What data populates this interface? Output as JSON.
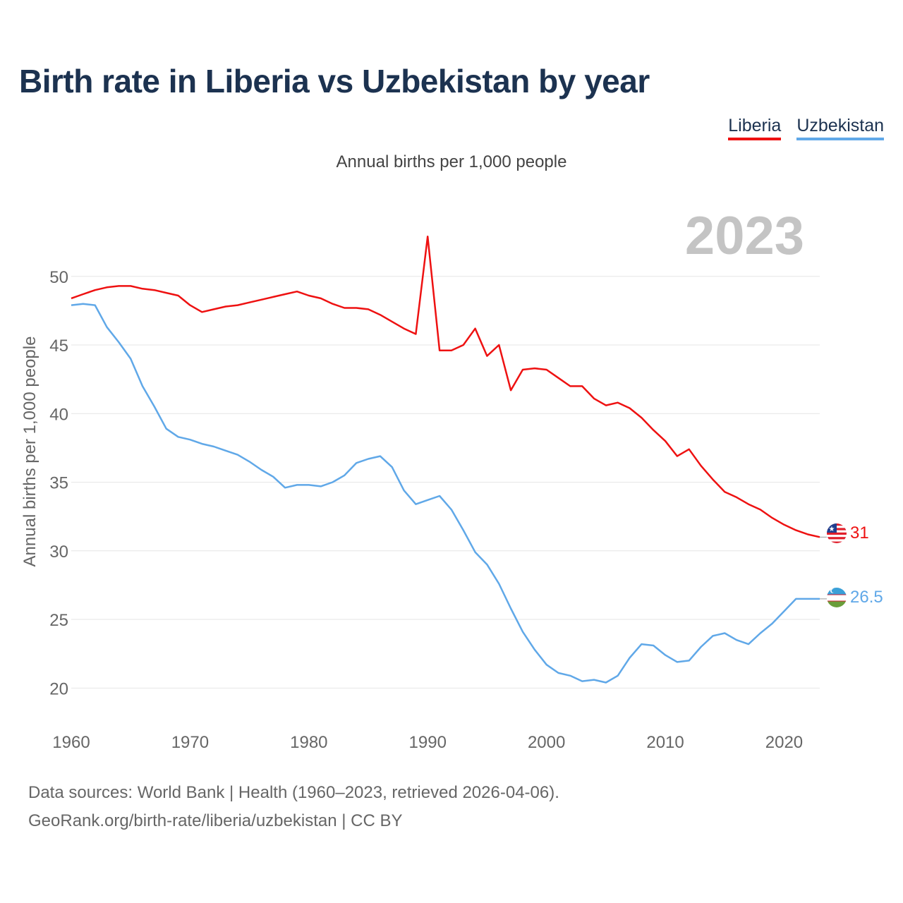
{
  "title": "Birth rate in Liberia vs Uzbekistan by year",
  "subtitle": "Annual births per 1,000 people",
  "legend": [
    {
      "label": "Liberia",
      "color": "#ee1111"
    },
    {
      "label": "Uzbekistan",
      "color": "#60a8e8"
    }
  ],
  "footer": {
    "line1": "Data sources: World Bank | Health (1960–2023, retrieved 2026-04-06).",
    "line2": "GeoRank.org/birth-rate/liberia/uzbekistan | CC BY"
  },
  "chart_data": {
    "type": "line",
    "title": "Birth rate in Liberia vs Uzbekistan by year",
    "ylabel": "Annual births per 1,000 people",
    "xlabel": "",
    "year_label": "2023",
    "xlim": [
      1960,
      2023
    ],
    "ylim": [
      17.6,
      54.1
    ],
    "x_ticks": [
      1960,
      1970,
      1980,
      1990,
      2000,
      2010,
      2020
    ],
    "y_ticks": [
      20,
      25,
      30,
      35,
      40,
      45,
      50
    ],
    "grid": true,
    "x": [
      1960,
      1961,
      1962,
      1963,
      1964,
      1965,
      1966,
      1967,
      1968,
      1969,
      1970,
      1971,
      1972,
      1973,
      1974,
      1975,
      1976,
      1977,
      1978,
      1979,
      1980,
      1981,
      1982,
      1983,
      1984,
      1985,
      1986,
      1987,
      1988,
      1989,
      1990,
      1991,
      1992,
      1993,
      1994,
      1995,
      1996,
      1997,
      1998,
      1999,
      2000,
      2001,
      2002,
      2003,
      2004,
      2005,
      2006,
      2007,
      2008,
      2009,
      2010,
      2011,
      2012,
      2013,
      2014,
      2015,
      2016,
      2017,
      2018,
      2019,
      2020,
      2021,
      2022,
      2023
    ],
    "series": [
      {
        "name": "Liberia",
        "color": "#ee1111",
        "end_label": "31",
        "values": [
          48.4,
          48.7,
          49.0,
          49.2,
          49.3,
          49.3,
          49.1,
          49.0,
          48.8,
          48.6,
          47.9,
          47.4,
          47.6,
          47.8,
          47.9,
          48.1,
          48.3,
          48.5,
          48.7,
          48.9,
          48.6,
          48.4,
          48.0,
          47.7,
          47.7,
          47.6,
          47.2,
          46.7,
          46.2,
          45.8,
          52.9,
          44.6,
          44.6,
          45.0,
          46.2,
          44.2,
          45.0,
          41.7,
          43.2,
          43.3,
          43.2,
          42.6,
          42.0,
          42.0,
          41.1,
          40.6,
          40.8,
          40.4,
          39.7,
          38.8,
          38.0,
          36.9,
          37.4,
          36.2,
          35.2,
          34.3,
          33.9,
          33.4,
          33.0,
          32.4,
          31.9,
          31.5,
          31.2,
          31.0
        ]
      },
      {
        "name": "Uzbekistan",
        "color": "#60a8e8",
        "end_label": "26.5",
        "values": [
          47.9,
          48.0,
          47.9,
          46.3,
          45.2,
          44.0,
          42.0,
          40.5,
          38.9,
          38.3,
          38.1,
          37.8,
          37.6,
          37.3,
          37.0,
          36.5,
          35.9,
          35.4,
          34.6,
          34.8,
          34.8,
          34.7,
          35.0,
          35.5,
          36.4,
          36.7,
          36.9,
          36.1,
          34.4,
          33.4,
          33.7,
          34.0,
          33.0,
          31.5,
          29.9,
          29.0,
          27.6,
          25.8,
          24.1,
          22.8,
          21.7,
          21.1,
          20.9,
          20.5,
          20.6,
          20.4,
          20.9,
          22.2,
          23.2,
          23.1,
          22.4,
          21.9,
          22.0,
          23.0,
          23.8,
          24.0,
          23.5,
          23.2,
          24.0,
          24.7,
          25.6,
          26.5,
          26.5,
          26.5
        ]
      }
    ]
  }
}
